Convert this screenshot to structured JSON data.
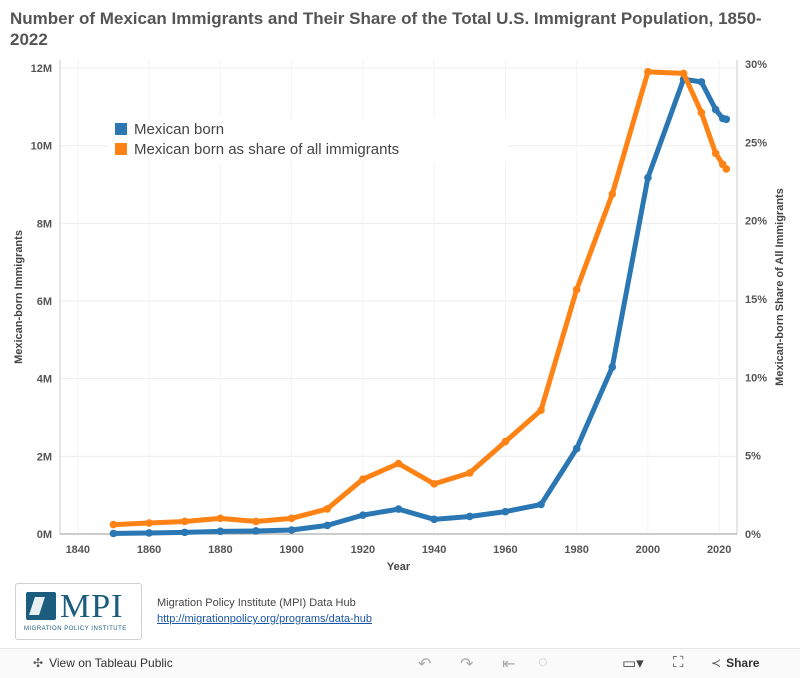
{
  "title": "Number of Mexican Immigrants and Their Share of the Total U.S. Immigrant Population, 1850-2022",
  "colors": {
    "mexican_born": "#2a77b4",
    "share": "#ff8214",
    "grid": "#ececec",
    "axis": "#555555"
  },
  "chart_data": {
    "type": "line",
    "title": "Number of Mexican Immigrants and Their Share of the Total U.S. Immigrant Population, 1850-2022",
    "xlabel": "Year",
    "ylabel": "Mexican-born Immigrants",
    "ylabel_right": "Mexican-born Share of All Immigrants",
    "x_ticks": [
      "1840",
      "1860",
      "1880",
      "1900",
      "1920",
      "1940",
      "1960",
      "1980",
      "2000",
      "2020"
    ],
    "x_tick_values": [
      1840,
      1860,
      1880,
      1900,
      1920,
      1940,
      1960,
      1980,
      2000,
      2020
    ],
    "xlim": [
      1835,
      2025
    ],
    "y_ticks": [
      "0M",
      "2M",
      "4M",
      "6M",
      "8M",
      "10M",
      "12M"
    ],
    "y_tick_values": [
      0,
      2000000,
      4000000,
      6000000,
      8000000,
      10000000,
      12000000
    ],
    "ylim": [
      0,
      12000000
    ],
    "y2_ticks": [
      "0%",
      "5%",
      "10%",
      "15%",
      "20%",
      "25%",
      "30%"
    ],
    "y2_tick_values": [
      0,
      5,
      10,
      15,
      20,
      25,
      30
    ],
    "y2lim": [
      0,
      30
    ],
    "legend": [
      "Mexican born",
      "Mexican born as share of all immigrants"
    ],
    "series": [
      {
        "name": "Mexican born",
        "axis": "left",
        "x": [
          1850,
          1860,
          1870,
          1880,
          1890,
          1900,
          1910,
          1920,
          1930,
          1940,
          1950,
          1960,
          1970,
          1980,
          1990,
          2000,
          2010,
          2015,
          2019,
          2021,
          2022
        ],
        "values": [
          13000,
          27000,
          42000,
          68000,
          78000,
          103000,
          222000,
          486000,
          641000,
          377000,
          451000,
          576000,
          760000,
          2199000,
          4298000,
          9177000,
          11711000,
          11643000,
          10931000,
          10700000,
          10680000
        ]
      },
      {
        "name": "Mexican born as share of all immigrants",
        "axis": "right",
        "x": [
          1850,
          1860,
          1870,
          1880,
          1890,
          1900,
          1910,
          1920,
          1930,
          1940,
          1950,
          1960,
          1970,
          1980,
          1990,
          2000,
          2010,
          2015,
          2019,
          2021,
          2022
        ],
        "values": [
          0.6,
          0.7,
          0.8,
          1.0,
          0.8,
          1.0,
          1.6,
          3.5,
          4.5,
          3.2,
          3.9,
          5.9,
          7.9,
          15.6,
          21.7,
          29.5,
          29.4,
          26.9,
          24.3,
          23.6,
          23.3
        ]
      }
    ]
  },
  "footer": {
    "logo_text": "MPI",
    "logo_subtext": "MIGRATION POLICY INSTITUTE",
    "source_name": "Migration Policy Institute (MPI) Data Hub",
    "source_url": "http://migrationpolicy.org/programs/data-hub"
  },
  "toolbar": {
    "view_label": "View on Tableau Public",
    "share_label": "Share"
  }
}
